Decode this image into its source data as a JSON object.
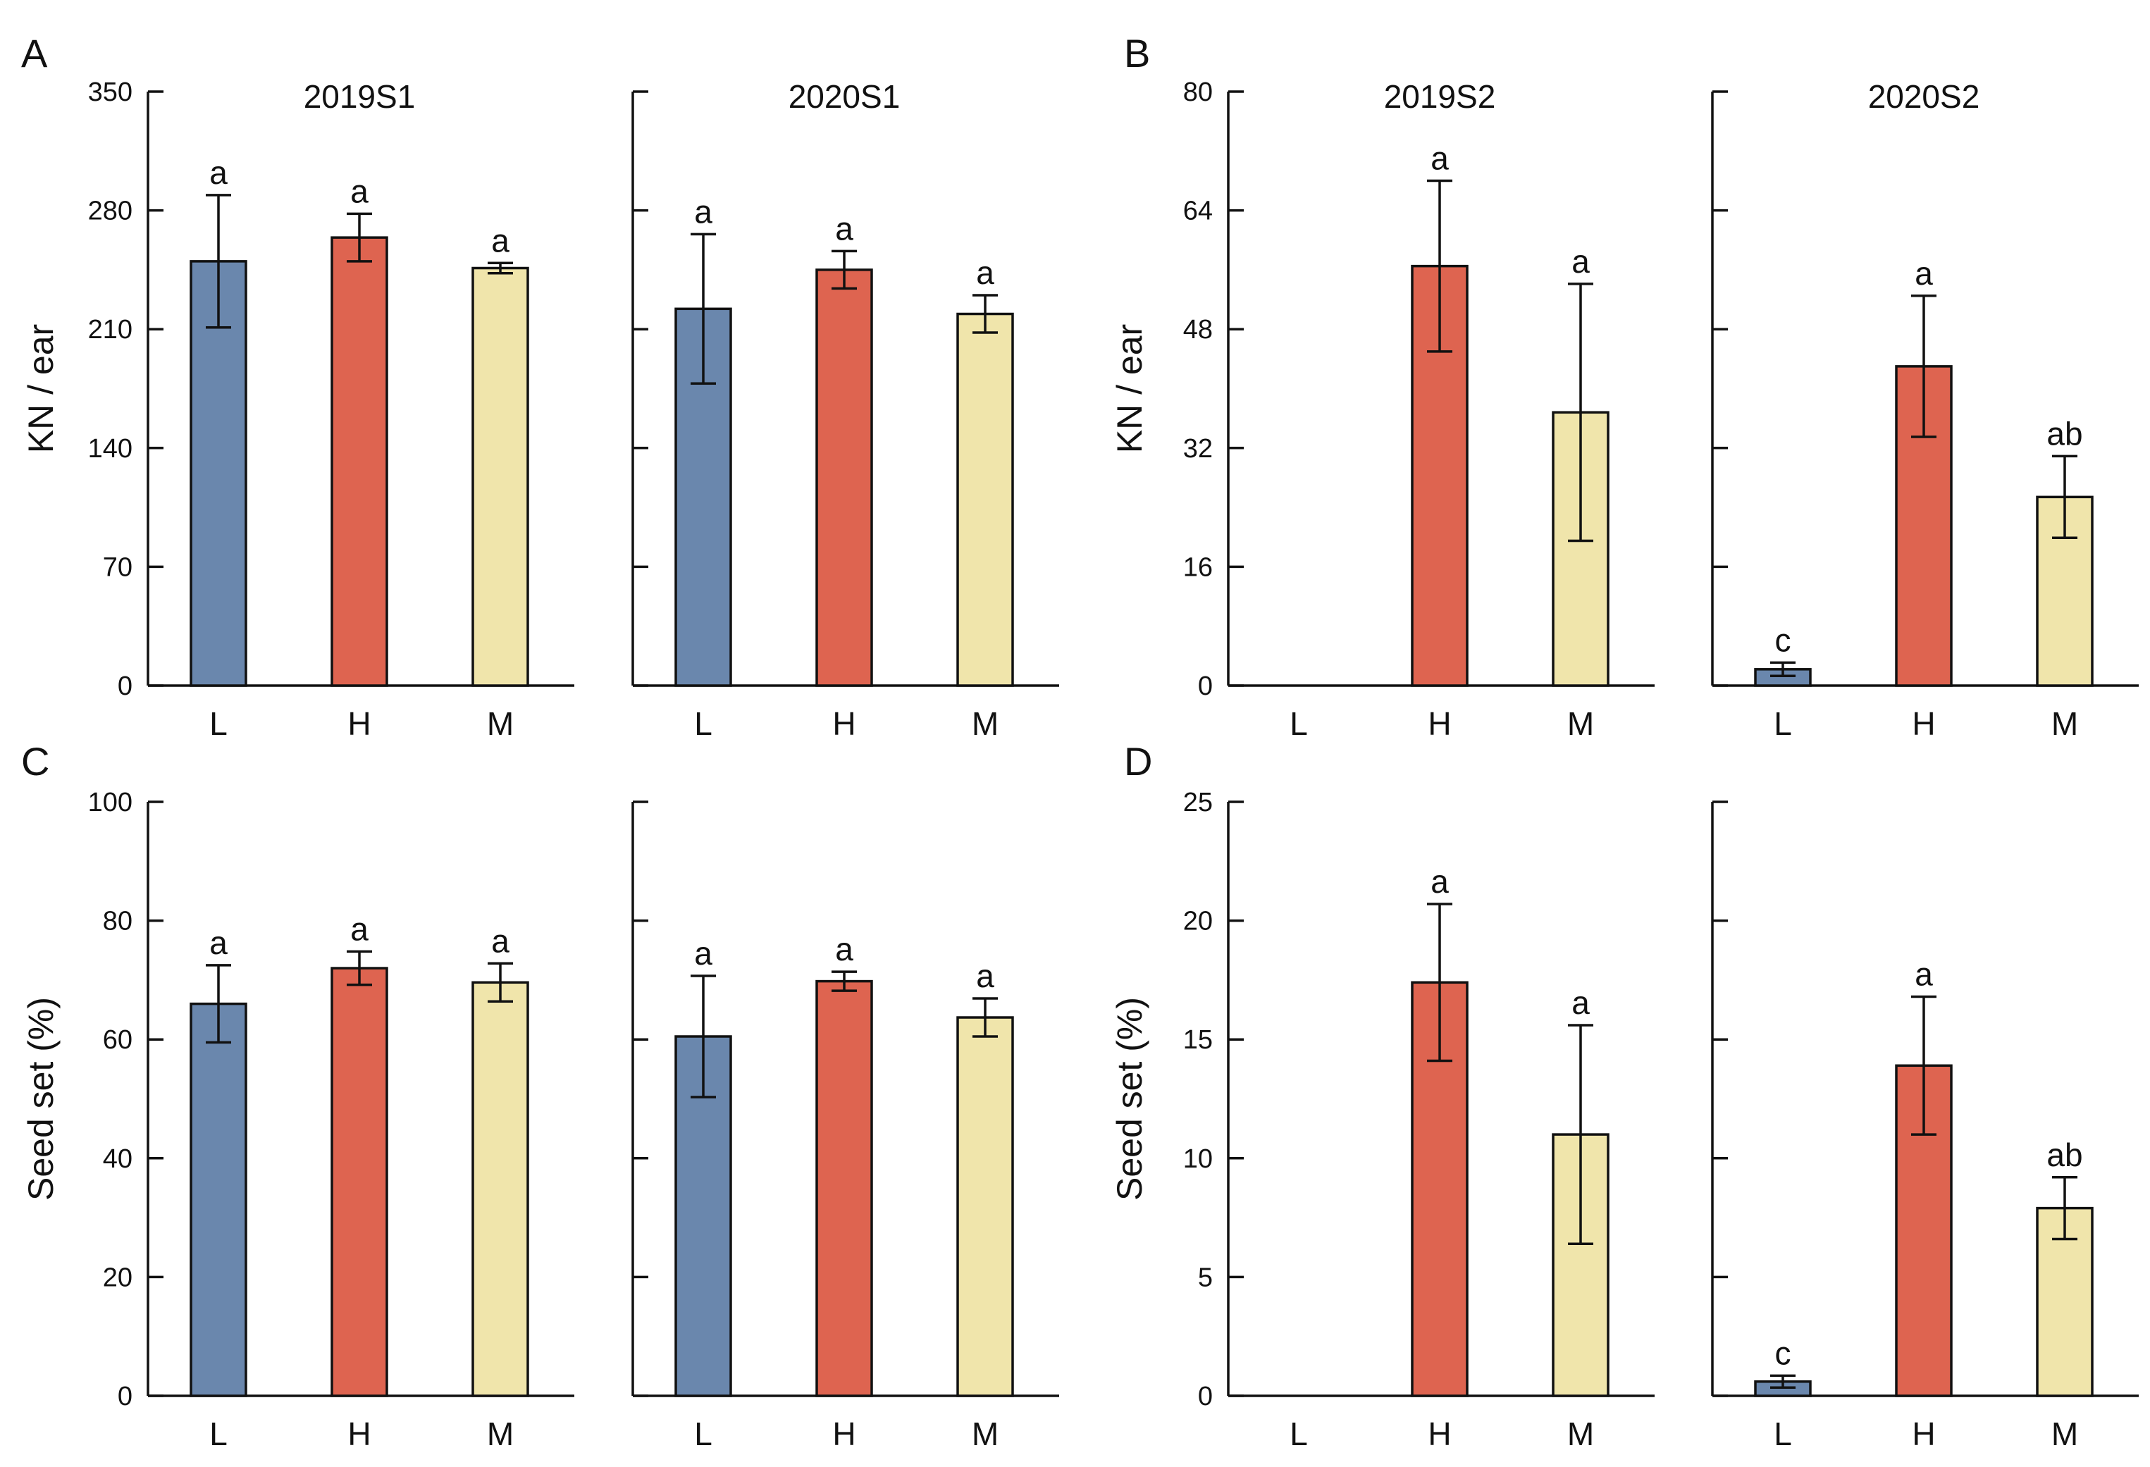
{
  "colors": {
    "L": "#6a87ad",
    "H": "#de6450",
    "M": "#f0e5ab",
    "axis": "#111111"
  },
  "chart_data": [
    {
      "panel": "A",
      "type": "bar",
      "title": "2019S1",
      "ylabel": "KN / ear",
      "ylim": [
        0,
        350
      ],
      "yticks": [
        0,
        70,
        140,
        210,
        280,
        350
      ],
      "categories": [
        "L",
        "H",
        "M"
      ],
      "values": [
        250,
        264,
        246
      ],
      "errors": [
        39,
        14,
        3
      ],
      "letters": [
        "a",
        "a",
        "a"
      ]
    },
    {
      "panel": "A",
      "type": "bar",
      "title": "2020S1",
      "ylabel": "",
      "ylim": [
        0,
        350
      ],
      "yticks": [
        0,
        70,
        140,
        210,
        280,
        350
      ],
      "categories": [
        "L",
        "H",
        "M"
      ],
      "values": [
        222,
        245,
        219
      ],
      "errors": [
        44,
        11,
        11
      ],
      "letters": [
        "a",
        "a",
        "a"
      ]
    },
    {
      "panel": "B",
      "type": "bar",
      "title": "2019S2",
      "ylabel": "KN / ear",
      "ylim": [
        0,
        80
      ],
      "yticks": [
        0,
        16,
        32,
        48,
        64,
        80
      ],
      "categories": [
        "L",
        "H",
        "M"
      ],
      "values": [
        0,
        56.5,
        36.8
      ],
      "errors": [
        0,
        11.5,
        17.3
      ],
      "letters": [
        "",
        "a",
        "a"
      ]
    },
    {
      "panel": "B",
      "type": "bar",
      "title": "2020S2",
      "ylabel": "",
      "ylim": [
        0,
        80
      ],
      "yticks": [
        0,
        16,
        32,
        48,
        64,
        80
      ],
      "categories": [
        "L",
        "H",
        "M"
      ],
      "values": [
        2.2,
        43.0,
        25.4
      ],
      "errors": [
        0.9,
        9.5,
        5.5
      ],
      "letters": [
        "c",
        "a",
        "ab"
      ]
    },
    {
      "panel": "C",
      "type": "bar",
      "title": "",
      "ylabel": "Seed set (%)",
      "ylim": [
        0,
        100
      ],
      "yticks": [
        0,
        20,
        40,
        60,
        80,
        100
      ],
      "categories": [
        "L",
        "H",
        "M"
      ],
      "values": [
        66.0,
        72.0,
        69.6
      ],
      "errors": [
        6.5,
        2.8,
        3.2
      ],
      "letters": [
        "a",
        "a",
        "a"
      ]
    },
    {
      "panel": "C",
      "type": "bar",
      "title": "",
      "ylabel": "",
      "ylim": [
        0,
        100
      ],
      "yticks": [
        0,
        20,
        40,
        60,
        80,
        100
      ],
      "categories": [
        "L",
        "H",
        "M"
      ],
      "values": [
        60.5,
        69.8,
        63.7
      ],
      "errors": [
        10.2,
        1.6,
        3.2
      ],
      "letters": [
        "a",
        "a",
        "a"
      ]
    },
    {
      "panel": "D",
      "type": "bar",
      "title": "",
      "ylabel": "Seed set (%)",
      "ylim": [
        0,
        25
      ],
      "yticks": [
        0,
        5,
        10,
        15,
        20,
        25
      ],
      "categories": [
        "L",
        "H",
        "M"
      ],
      "values": [
        0,
        17.4,
        11.0
      ],
      "errors": [
        0,
        3.3,
        4.6
      ],
      "letters": [
        "",
        "a",
        "a"
      ]
    },
    {
      "panel": "D",
      "type": "bar",
      "title": "",
      "ylabel": "",
      "ylim": [
        0,
        25
      ],
      "yticks": [
        0,
        5,
        10,
        15,
        20,
        25
      ],
      "categories": [
        "L",
        "H",
        "M"
      ],
      "values": [
        0.6,
        13.9,
        7.9
      ],
      "errors": [
        0.25,
        2.9,
        1.3
      ],
      "letters": [
        "c",
        "a",
        "ab"
      ]
    }
  ]
}
